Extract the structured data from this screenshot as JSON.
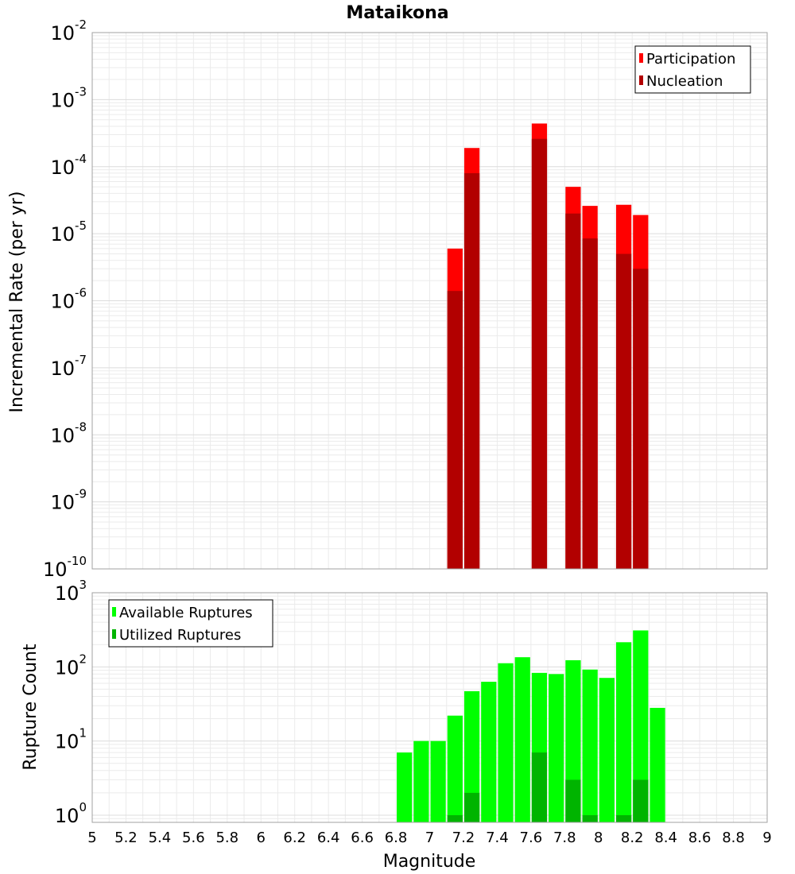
{
  "chart_data": [
    {
      "type": "bar",
      "title": "Mataikona",
      "ylabel": "Incremental Rate (per yr)",
      "xlabel": "",
      "xlim": [
        5,
        9
      ],
      "ylim": [
        1e-10,
        0.01
      ],
      "yscale": "log",
      "grid": true,
      "legend_position": "top-right",
      "bin_width": 0.1,
      "y_ticks": [
        {
          "base": "10",
          "exp": "-2"
        },
        {
          "base": "10",
          "exp": "-3"
        },
        {
          "base": "10",
          "exp": "-4"
        },
        {
          "base": "10",
          "exp": "-5"
        },
        {
          "base": "10",
          "exp": "-6"
        },
        {
          "base": "10",
          "exp": "-7"
        },
        {
          "base": "10",
          "exp": "-8"
        },
        {
          "base": "10",
          "exp": "-9"
        },
        {
          "base": "10",
          "exp": "-10"
        }
      ],
      "series": [
        {
          "name": "Participation",
          "color": "#ff0000",
          "x": [
            7.15,
            7.25,
            7.65,
            7.85,
            7.95,
            8.15,
            8.25
          ],
          "values": [
            6e-06,
            0.00019,
            0.00044,
            5e-05,
            2.6e-05,
            2.7e-05,
            1.9e-05
          ]
        },
        {
          "name": "Nucleation",
          "color": "#b20000",
          "x": [
            7.15,
            7.25,
            7.65,
            7.85,
            7.95,
            8.15,
            8.25
          ],
          "values": [
            1.4e-06,
            8e-05,
            0.00026,
            2e-05,
            8.5e-06,
            5e-06,
            3e-06
          ]
        }
      ]
    },
    {
      "type": "bar",
      "title": "",
      "ylabel": "Rupture Count",
      "xlabel": "Magnitude",
      "xlim": [
        5,
        9
      ],
      "ylim": [
        0.8,
        1000
      ],
      "yscale": "log",
      "grid": true,
      "legend_position": "top-left",
      "bin_width": 0.1,
      "x_ticks": [
        "5",
        "5.2",
        "5.4",
        "5.6",
        "5.8",
        "6",
        "6.2",
        "6.4",
        "6.6",
        "6.8",
        "7",
        "7.2",
        "7.4",
        "7.6",
        "7.8",
        "8",
        "8.2",
        "8.4",
        "8.6",
        "8.8",
        "9"
      ],
      "y_ticks": [
        {
          "base": "10",
          "exp": "3"
        },
        {
          "base": "10",
          "exp": "2"
        },
        {
          "base": "10",
          "exp": "1"
        },
        {
          "base": "10",
          "exp": "0"
        }
      ],
      "series": [
        {
          "name": "Available Ruptures",
          "color": "#00ff00",
          "x": [
            6.85,
            6.95,
            7.05,
            7.15,
            7.25,
            7.35,
            7.45,
            7.55,
            7.65,
            7.75,
            7.85,
            7.95,
            8.05,
            8.15,
            8.25,
            8.35
          ],
          "values": [
            7,
            10,
            10,
            22,
            47,
            63,
            112,
            135,
            83,
            80,
            123,
            92,
            71,
            215,
            310,
            28
          ]
        },
        {
          "name": "Utilized Ruptures",
          "color": "#00b400",
          "x": [
            7.15,
            7.25,
            7.65,
            7.85,
            7.95,
            8.15,
            8.25
          ],
          "values": [
            1,
            2,
            7,
            3,
            1,
            1,
            3
          ]
        }
      ]
    }
  ]
}
